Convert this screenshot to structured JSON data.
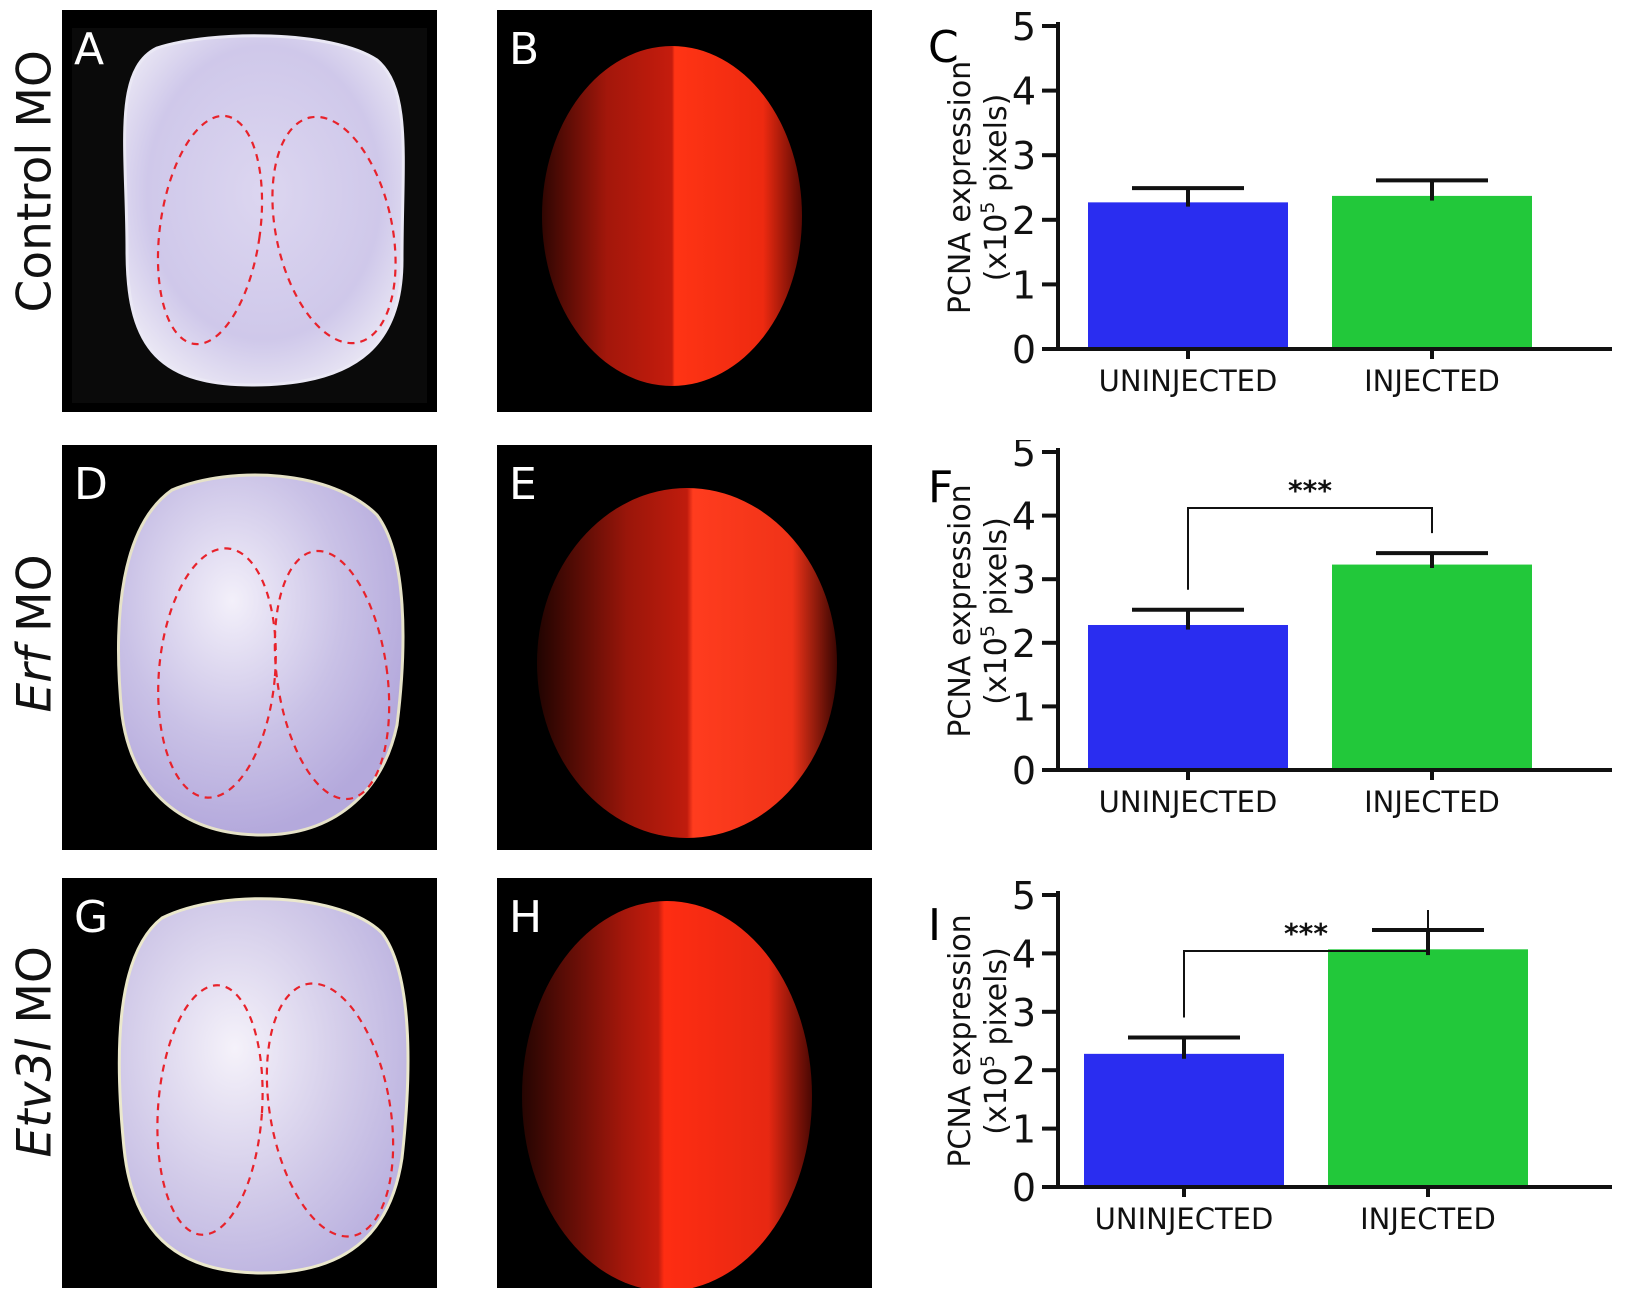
{
  "rows": [
    {
      "label_main": "Control MO",
      "label_italic": "",
      "label_rest": "Control MO"
    },
    {
      "label_main": "Erf MO",
      "label_italic": "Erf",
      "label_rest": " MO"
    },
    {
      "label_main": "Etv3l MO",
      "label_italic": "Etv3l",
      "label_rest": " MO"
    }
  ],
  "panel_letters": [
    "A",
    "B",
    "C",
    "D",
    "E",
    "F",
    "G",
    "H",
    "I"
  ],
  "colors": {
    "uninjected": "#2a2df0",
    "injected": "#22c83a",
    "outline": "#e8222b",
    "fluor": "#ff2a10"
  },
  "chart_data": [
    {
      "type": "bar",
      "panel": "C",
      "categories": [
        "UNINJECTED",
        "INJECTED"
      ],
      "values": [
        2.27,
        2.37
      ],
      "errors": [
        0.22,
        0.24
      ],
      "ylabel_line1": "PCNA expression",
      "ylabel_line2a": "(x10",
      "ylabel_sup": "5",
      "ylabel_line2b": " pixels)",
      "yticks": [
        "0",
        "1",
        "2",
        "3",
        "4",
        "5"
      ],
      "ylim": [
        0,
        5
      ],
      "significance": ""
    },
    {
      "type": "bar",
      "panel": "F",
      "categories": [
        "UNINJECTED",
        "INJECTED"
      ],
      "values": [
        2.28,
        3.23
      ],
      "errors": [
        0.24,
        0.18
      ],
      "ylabel_line1": "PCNA expression",
      "ylabel_line2a": "(x10",
      "ylabel_sup": "5",
      "ylabel_line2b": " pixels)",
      "yticks": [
        "0",
        "1",
        "2",
        "3",
        "4",
        "5"
      ],
      "ylim": [
        0,
        5
      ],
      "significance": "***"
    },
    {
      "type": "bar",
      "panel": "I",
      "categories": [
        "UNINJECTED",
        "INJECTED"
      ],
      "values": [
        2.28,
        4.07
      ],
      "errors": [
        0.28,
        0.33
      ],
      "ylabel_line1": "PCNA expression",
      "ylabel_line2a": "(x10",
      "ylabel_sup": "5",
      "ylabel_line2b": " pixels)",
      "yticks": [
        "0",
        "1",
        "2",
        "3",
        "4",
        "5"
      ],
      "ylim": [
        0,
        5
      ],
      "significance": "***"
    }
  ]
}
